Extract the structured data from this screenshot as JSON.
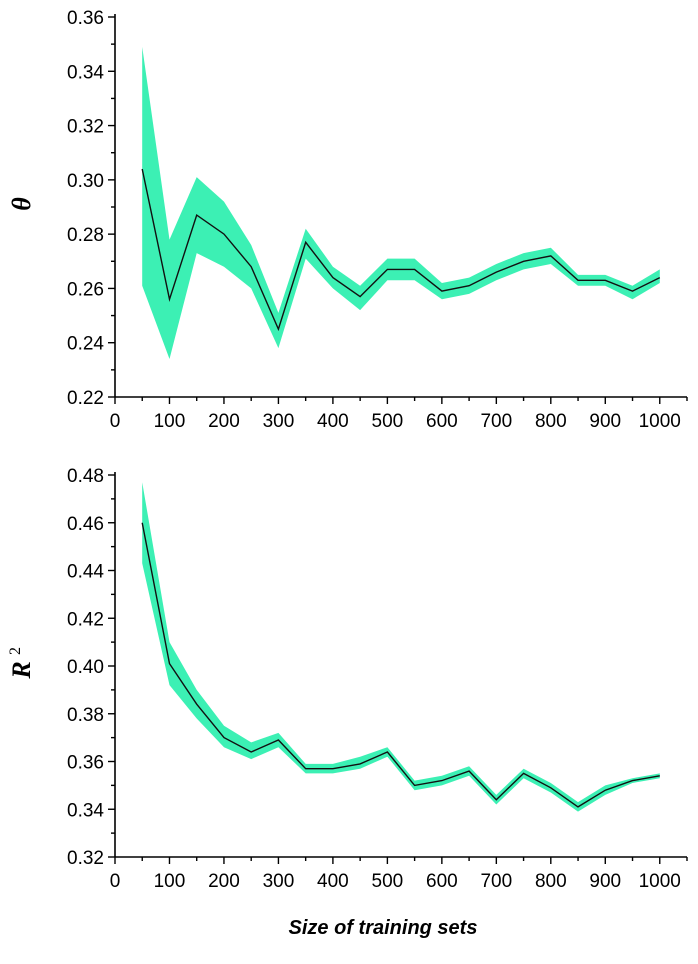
{
  "chart_data": [
    {
      "type": "area",
      "ylabel": "θ",
      "xlabel": "",
      "xlim": [
        0,
        1050
      ],
      "ylim": [
        0.22,
        0.36
      ],
      "xticks": [
        0,
        100,
        200,
        300,
        400,
        500,
        600,
        700,
        800,
        900,
        1000
      ],
      "yticks": [
        0.22,
        0.24,
        0.26,
        0.28,
        0.3,
        0.32,
        0.34,
        0.36
      ],
      "series": [
        {
          "x": [
            50,
            100,
            150,
            200,
            250,
            300,
            350,
            400,
            450,
            500,
            550,
            600,
            650,
            700,
            750,
            800,
            850,
            900,
            950,
            1000
          ],
          "mean": [
            0.304,
            0.256,
            0.287,
            0.28,
            0.268,
            0.245,
            0.277,
            0.264,
            0.257,
            0.267,
            0.267,
            0.259,
            0.261,
            0.266,
            0.27,
            0.272,
            0.263,
            0.263,
            0.259,
            0.264
          ],
          "upper": [
            0.349,
            0.278,
            0.301,
            0.292,
            0.276,
            0.251,
            0.282,
            0.268,
            0.261,
            0.271,
            0.271,
            0.262,
            0.264,
            0.269,
            0.273,
            0.275,
            0.265,
            0.265,
            0.261,
            0.267
          ],
          "lower": [
            0.261,
            0.234,
            0.273,
            0.268,
            0.26,
            0.238,
            0.271,
            0.26,
            0.252,
            0.263,
            0.263,
            0.256,
            0.258,
            0.263,
            0.267,
            0.269,
            0.261,
            0.261,
            0.256,
            0.262
          ]
        }
      ]
    },
    {
      "type": "area",
      "ylabel": "R",
      "ylabel_sup": "2",
      "xlabel": "Size of training sets",
      "xlim": [
        0,
        1050
      ],
      "ylim": [
        0.32,
        0.48
      ],
      "xticks": [
        0,
        100,
        200,
        300,
        400,
        500,
        600,
        700,
        800,
        900,
        1000
      ],
      "yticks": [
        0.32,
        0.34,
        0.36,
        0.38,
        0.4,
        0.42,
        0.44,
        0.46,
        0.48
      ],
      "series": [
        {
          "x": [
            50,
            100,
            150,
            200,
            250,
            300,
            350,
            400,
            450,
            500,
            550,
            600,
            650,
            700,
            750,
            800,
            850,
            900,
            950,
            1000
          ],
          "mean": [
            0.46,
            0.401,
            0.384,
            0.37,
            0.364,
            0.369,
            0.357,
            0.357,
            0.359,
            0.364,
            0.35,
            0.352,
            0.356,
            0.344,
            0.355,
            0.349,
            0.341,
            0.348,
            0.352,
            0.354
          ],
          "upper": [
            0.477,
            0.41,
            0.39,
            0.375,
            0.368,
            0.372,
            0.359,
            0.359,
            0.362,
            0.366,
            0.352,
            0.354,
            0.358,
            0.346,
            0.357,
            0.351,
            0.343,
            0.35,
            0.353,
            0.355
          ],
          "lower": [
            0.443,
            0.392,
            0.378,
            0.366,
            0.361,
            0.366,
            0.355,
            0.355,
            0.357,
            0.362,
            0.348,
            0.35,
            0.354,
            0.342,
            0.353,
            0.347,
            0.339,
            0.346,
            0.351,
            0.353
          ]
        }
      ]
    }
  ],
  "colors": {
    "band": "#3cf0b4",
    "line": "#111111",
    "axis": "#000000"
  }
}
